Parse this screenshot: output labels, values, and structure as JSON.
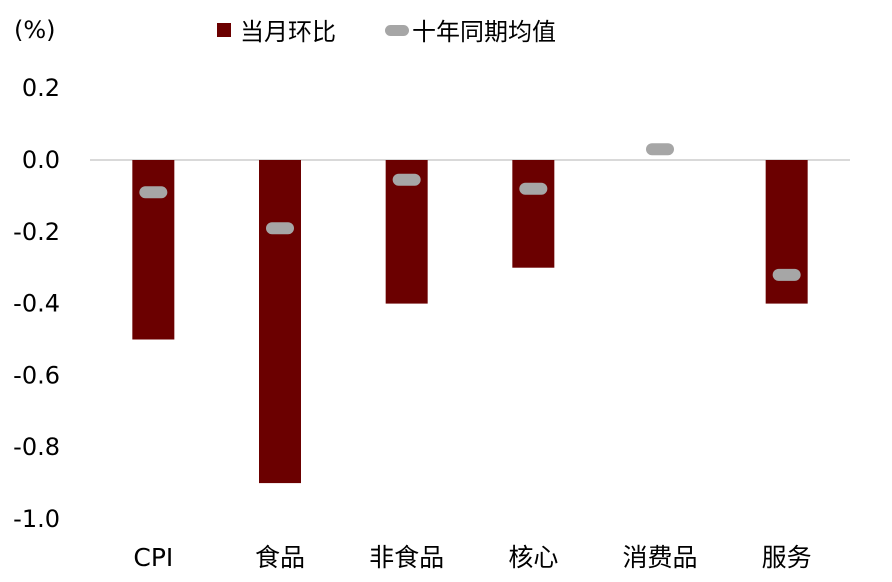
{
  "chart_data": {
    "type": "bar",
    "unit_label": "(%)",
    "categories": [
      "CPI",
      "食品",
      "非食品",
      "核心",
      "消费品",
      "服务"
    ],
    "series": [
      {
        "name": "当月环比",
        "kind": "bar",
        "color": "#6b0000",
        "values": [
          -0.5,
          -0.9,
          -0.4,
          -0.3,
          0.0,
          -0.4
        ]
      },
      {
        "name": "十年同期均值",
        "kind": "marker",
        "color": "#a6a6a6",
        "values": [
          -0.09,
          -0.19,
          -0.055,
          -0.08,
          0.03,
          -0.32
        ]
      }
    ],
    "ylim": [
      -1.0,
      0.3
    ],
    "yticks": [
      "0.2",
      "0.0",
      "-0.2",
      "-0.4",
      "-0.6",
      "-0.8",
      "-1.0"
    ],
    "ytick_values": [
      0.2,
      0.0,
      -0.2,
      -0.4,
      -0.6,
      -0.8,
      -1.0
    ],
    "legend_position": "top",
    "grid": false
  }
}
